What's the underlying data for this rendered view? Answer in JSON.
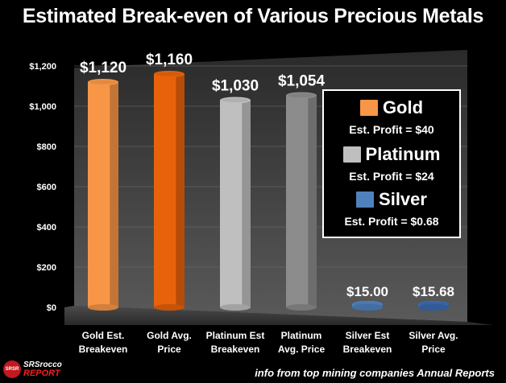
{
  "title": "Estimated Break-even of Various Precious Metals",
  "chart_data": {
    "type": "bar",
    "categories": [
      [
        "Gold Est.",
        "Breakeven"
      ],
      [
        "Gold Avg.",
        "Price"
      ],
      [
        "Platinum Est",
        "Breakeven"
      ],
      [
        "Platinum",
        "Avg. Price"
      ],
      [
        "Silver Est",
        "Breakeven"
      ],
      [
        "Silver Avg.",
        "Price"
      ]
    ],
    "values": [
      1120,
      1160,
      1030,
      1054,
      15.0,
      15.68
    ],
    "data_labels": [
      "$1,120",
      "$1,160",
      "$1,030",
      "$1,054",
      "$15.00",
      "$15.68"
    ],
    "label_colors": [
      "#ffffff",
      "#ffffff",
      "#ffffff",
      "#ffffff",
      "#ffffff",
      "#ffffff"
    ],
    "bar_colors": [
      "#f79646",
      "#e8620c",
      "#bfbfbf",
      "#8c8c8c",
      "#4f81bd",
      "#3a6bb0"
    ],
    "ylim": [
      0,
      1200
    ],
    "yticks": [
      0,
      200,
      400,
      600,
      800,
      1000,
      1200
    ],
    "ytick_labels": [
      "$0",
      "$200",
      "$400",
      "$600",
      "$800",
      "$1,000",
      "$1,200"
    ]
  },
  "legend": [
    {
      "name": "Gold",
      "profit": "Est. Profit = $40",
      "color": "#f79646"
    },
    {
      "name": "Platinum",
      "profit": "Est. Profit = $24",
      "color": "#bfbfbf"
    },
    {
      "name": "Silver",
      "profit": "Est. Profit = $0.68",
      "color": "#4f81bd"
    }
  ],
  "logo": {
    "seal": "SRSR",
    "top": "SRSrocco",
    "bottom": "REPORT"
  },
  "source": "info from top mining companies Annual Reports"
}
